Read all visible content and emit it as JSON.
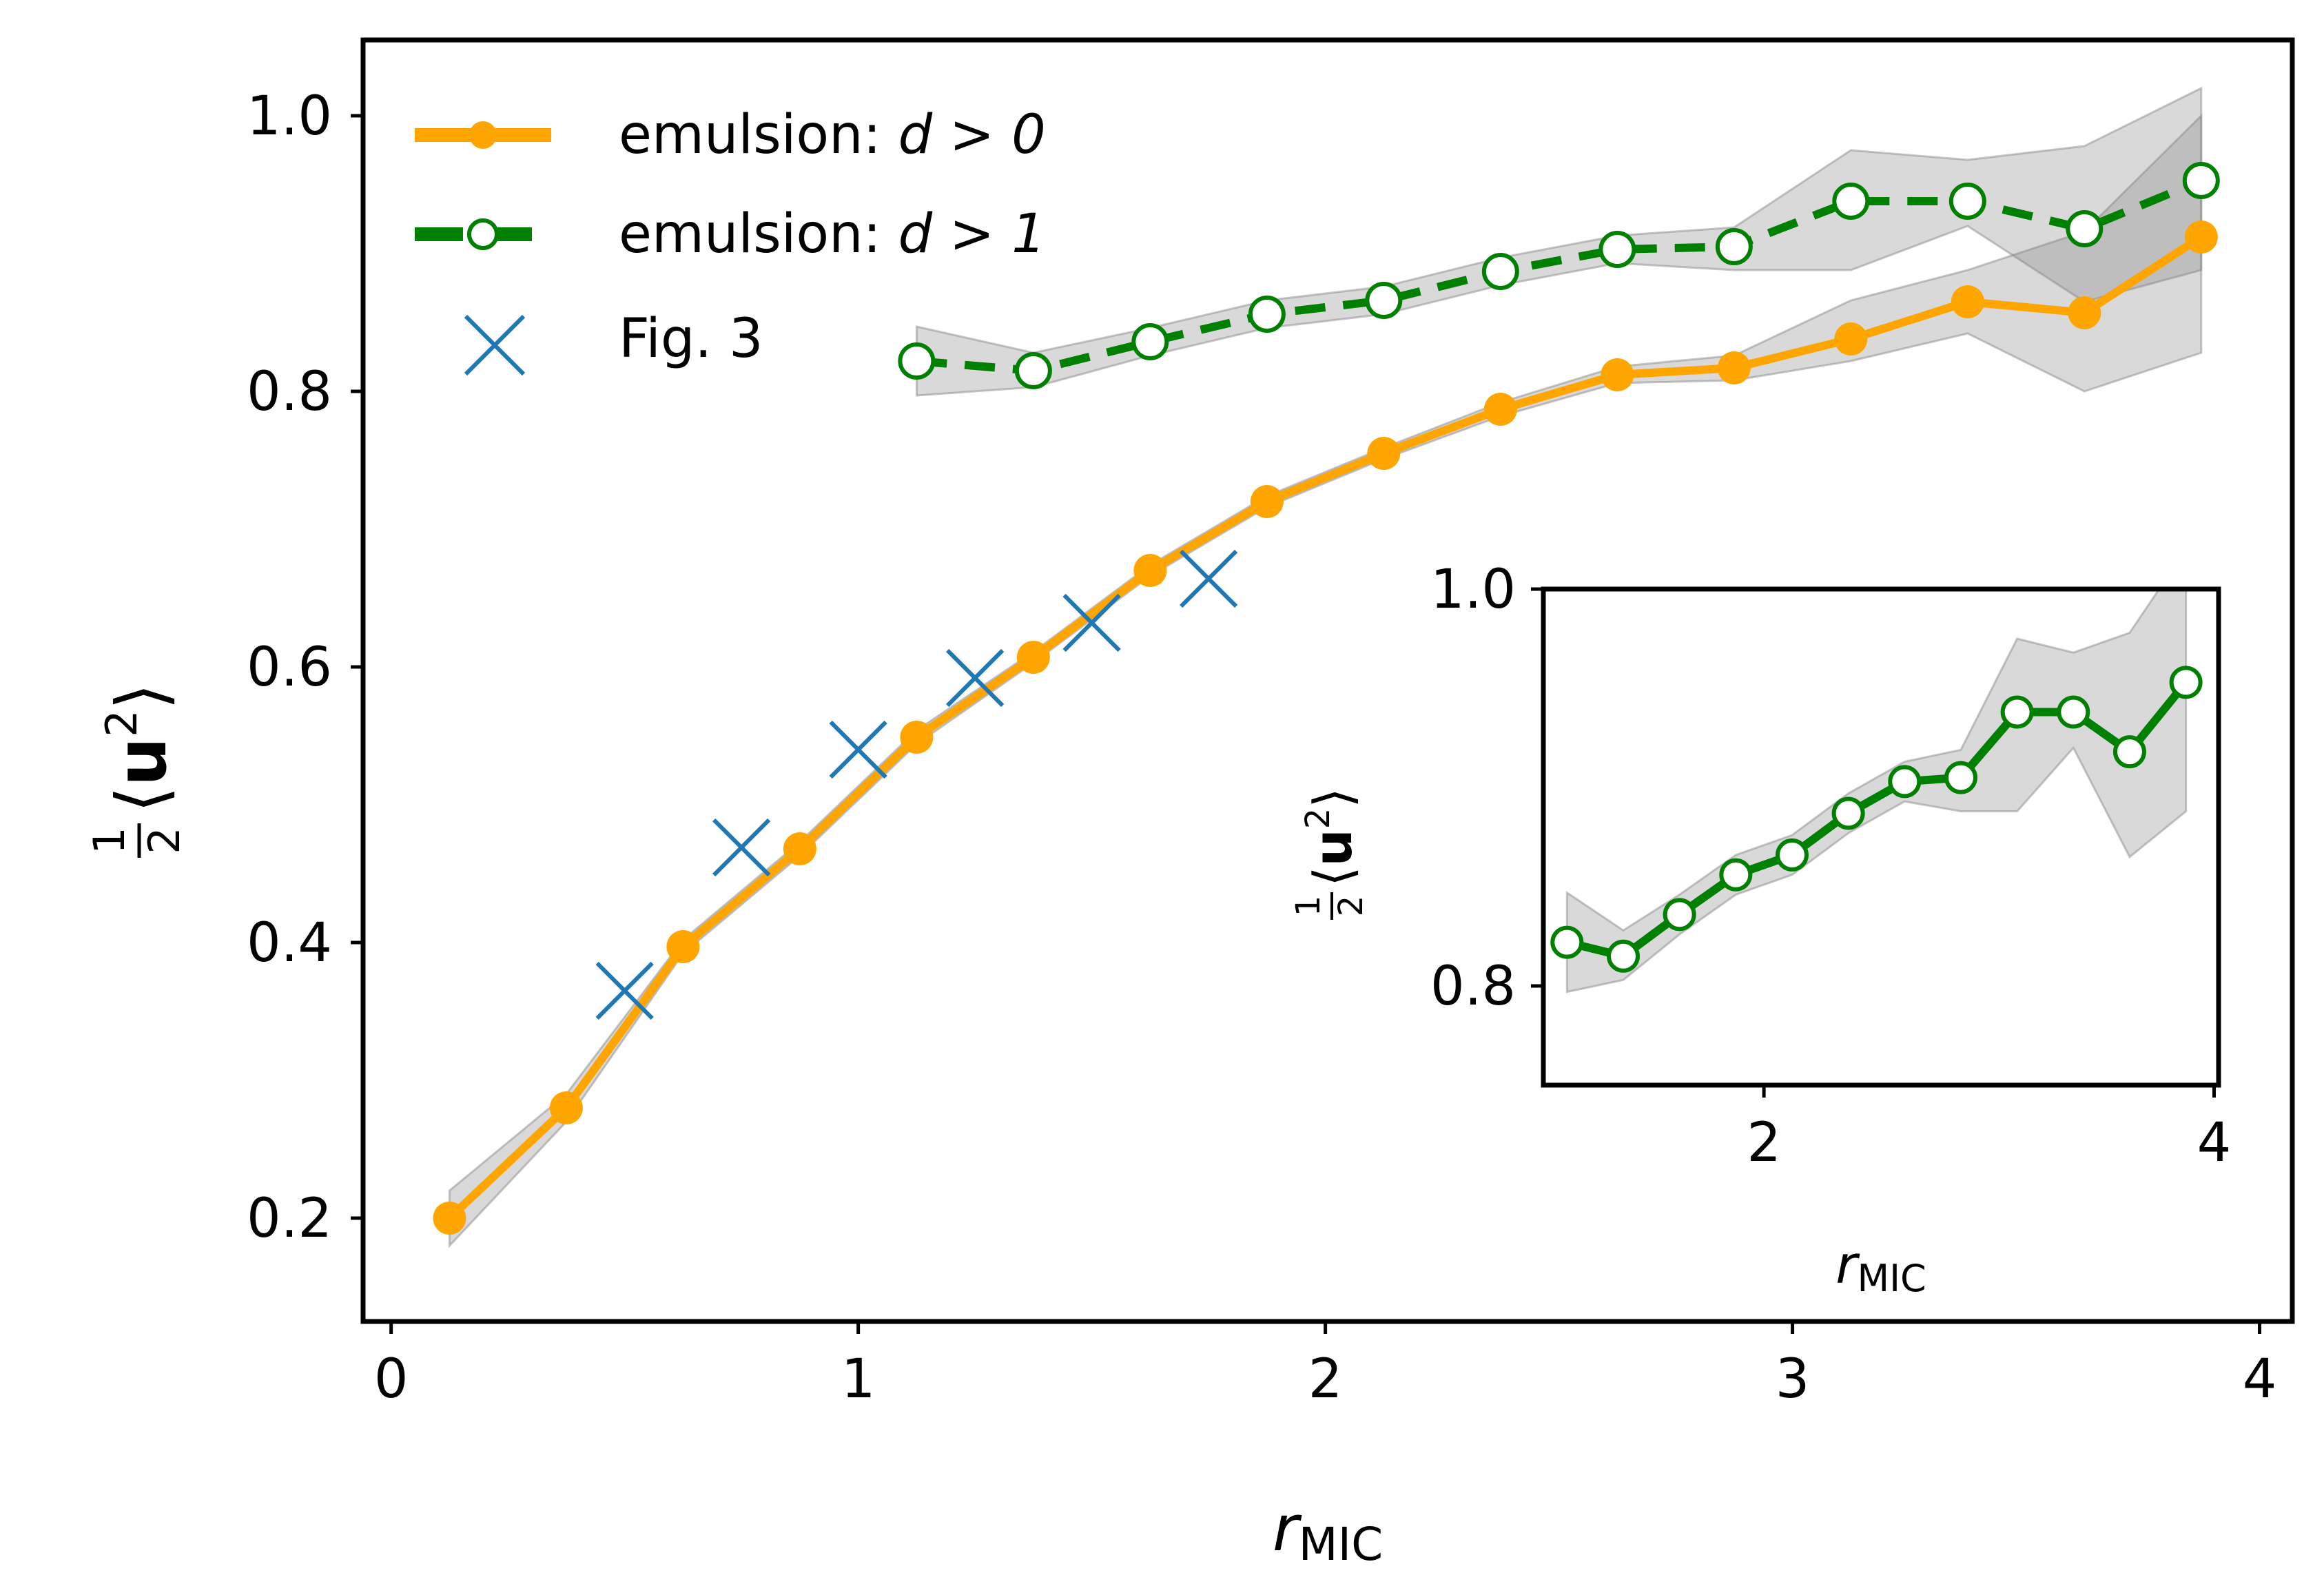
{
  "chart_data": [
    {
      "id": "main",
      "type": "line",
      "title": "",
      "xlabel": {
        "base": "r",
        "subscript": "MIC"
      },
      "ylabel": {
        "num": "1",
        "den": "2",
        "expr": "⟨u²⟩",
        "bold": "u",
        "sup": "2"
      },
      "xlim": [
        -0.06,
        4.07
      ],
      "ylim": [
        0.125,
        1.055
      ],
      "xticks": [
        0,
        1,
        2,
        3,
        4
      ],
      "xtick_labels": [
        "0",
        "1",
        "2",
        "3",
        "4"
      ],
      "yticks": [
        0.2,
        0.4,
        0.6,
        0.8,
        1.0
      ],
      "ytick_labels": [
        "0.2",
        "0.4",
        "0.6",
        "0.8",
        "1.0"
      ],
      "grid": false,
      "legend_position": "top-left",
      "series": [
        {
          "name": "emulsion: d > 0",
          "legend_text": "emulsion: ",
          "legend_math": "d > 0",
          "color": "#ffa500",
          "style": "solid",
          "marker": "filled-circle",
          "x": [
            0.125,
            0.375,
            0.625,
            0.875,
            1.125,
            1.375,
            1.625,
            1.875,
            2.125,
            2.375,
            2.625,
            2.875,
            3.125,
            3.375,
            3.625,
            3.875
          ],
          "y": [
            0.2,
            0.28,
            0.397,
            0.468,
            0.549,
            0.607,
            0.67,
            0.72,
            0.755,
            0.787,
            0.812,
            0.817,
            0.838,
            0.865,
            0.857,
            0.912
          ],
          "band_low": [
            0.18,
            0.27,
            0.392,
            0.463,
            0.544,
            0.603,
            0.666,
            0.716,
            0.751,
            0.782,
            0.806,
            0.808,
            0.822,
            0.842,
            0.8,
            0.828
          ],
          "band_high": [
            0.22,
            0.29,
            0.402,
            0.473,
            0.554,
            0.611,
            0.674,
            0.724,
            0.759,
            0.792,
            0.818,
            0.826,
            0.866,
            0.888,
            0.916,
            1.0
          ]
        },
        {
          "name": "emulsion: d > 1",
          "legend_text": "emulsion: ",
          "legend_math": "d > 1",
          "color": "#008000",
          "style": "dashed",
          "marker": "open-circle",
          "x": [
            1.125,
            1.375,
            1.625,
            1.875,
            2.125,
            2.375,
            2.625,
            2.875,
            3.125,
            3.375,
            3.625,
            3.875
          ],
          "y": [
            0.822,
            0.815,
            0.836,
            0.856,
            0.866,
            0.887,
            0.903,
            0.905,
            0.938,
            0.938,
            0.918,
            0.953
          ],
          "band_low": [
            0.797,
            0.803,
            0.826,
            0.846,
            0.856,
            0.877,
            0.893,
            0.888,
            0.888,
            0.92,
            0.865,
            0.888
          ],
          "band_high": [
            0.847,
            0.828,
            0.846,
            0.866,
            0.876,
            0.897,
            0.913,
            0.919,
            0.975,
            0.968,
            0.978,
            1.02
          ]
        },
        {
          "name": "Fig. 3",
          "legend_text": "Fig. 3",
          "color": "#1f77b4",
          "style": "none",
          "marker": "x",
          "x": [
            0.5,
            0.75,
            1.0,
            1.25,
            1.5,
            1.75
          ],
          "y": [
            0.365,
            0.469,
            0.54,
            0.592,
            0.632,
            0.664
          ]
        }
      ]
    },
    {
      "id": "inset",
      "type": "line",
      "title": "",
      "xlabel": {
        "base": "r",
        "subscript": "MIC"
      },
      "ylabel": {
        "num": "1",
        "den": "2",
        "expr": "⟨u²⟩",
        "bold": "u",
        "sup": "2"
      },
      "xlim": [
        1.02,
        4.02
      ],
      "ylim": [
        0.75,
        1.0
      ],
      "xticks": [
        2,
        4
      ],
      "xtick_labels": [
        "2",
        "4"
      ],
      "yticks": [
        0.8,
        1.0
      ],
      "ytick_labels": [
        "0.8",
        "1.0"
      ],
      "grid": false,
      "series": [
        {
          "name": "emulsion: d > 1",
          "color": "#008000",
          "marker": "open-circle",
          "x": [
            1.125,
            1.375,
            1.625,
            1.875,
            2.125,
            2.375,
            2.625,
            2.875,
            3.125,
            3.375,
            3.625,
            3.875
          ],
          "y": [
            0.822,
            0.815,
            0.836,
            0.856,
            0.866,
            0.887,
            0.903,
            0.905,
            0.938,
            0.938,
            0.918,
            0.953
          ],
          "band_low": [
            0.797,
            0.803,
            0.826,
            0.846,
            0.856,
            0.877,
            0.893,
            0.888,
            0.888,
            0.92,
            0.865,
            0.888
          ],
          "band_high": [
            0.847,
            0.828,
            0.846,
            0.866,
            0.876,
            0.897,
            0.913,
            0.919,
            0.975,
            0.968,
            0.978,
            1.02
          ]
        }
      ]
    }
  ]
}
